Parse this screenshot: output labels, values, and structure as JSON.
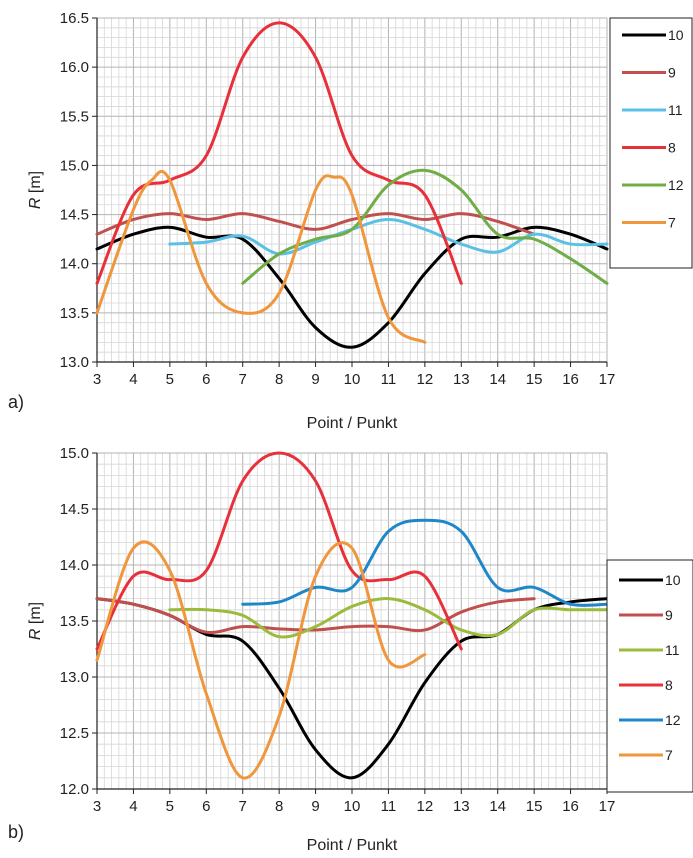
{
  "chart_data": [
    {
      "type": "line",
      "panel_label": "a)",
      "xlabel": "Point / Punkt",
      "ylabel_italic": "R",
      "ylabel_unit": " [m]",
      "xlim": [
        3,
        17
      ],
      "ylim": [
        13.0,
        16.5
      ],
      "xticks": [
        "3",
        "4",
        "5",
        "6",
        "7",
        "8",
        "9",
        "10",
        "11",
        "12",
        "13",
        "14",
        "15",
        "16",
        "17"
      ],
      "yticks": [
        "13.0",
        "13.5",
        "14.0",
        "14.5",
        "15.0",
        "15.5",
        "16.0",
        "16.5"
      ],
      "legend_position": "right",
      "series": [
        {
          "name": "10",
          "color": "#000000",
          "points": [
            [
              3,
              14.15
            ],
            [
              4,
              14.3
            ],
            [
              5,
              14.37
            ],
            [
              6,
              14.27
            ],
            [
              7,
              14.25
            ],
            [
              8,
              13.85
            ],
            [
              9,
              13.35
            ],
            [
              10,
              13.15
            ],
            [
              11,
              13.4
            ],
            [
              12,
              13.9
            ],
            [
              13,
              14.25
            ],
            [
              14,
              14.27
            ],
            [
              15,
              14.37
            ],
            [
              16,
              14.3
            ],
            [
              17,
              14.15
            ]
          ]
        },
        {
          "name": "9",
          "color": "#c0504d",
          "points": [
            [
              3,
              14.3
            ],
            [
              4,
              14.45
            ],
            [
              5,
              14.51
            ],
            [
              6,
              14.45
            ],
            [
              7,
              14.51
            ],
            [
              8,
              14.43
            ],
            [
              9,
              14.35
            ],
            [
              10,
              14.45
            ],
            [
              11,
              14.51
            ],
            [
              12,
              14.45
            ],
            [
              13,
              14.51
            ],
            [
              14,
              14.43
            ],
            [
              15,
              14.3
            ]
          ]
        },
        {
          "name": "11",
          "color": "#5bc0e6",
          "points": [
            [
              5,
              14.2
            ],
            [
              6,
              14.22
            ],
            [
              7,
              14.28
            ],
            [
              8,
              14.1
            ],
            [
              9,
              14.22
            ],
            [
              10,
              14.35
            ],
            [
              11,
              14.45
            ],
            [
              12,
              14.35
            ],
            [
              13,
              14.2
            ],
            [
              14,
              14.12
            ],
            [
              15,
              14.3
            ],
            [
              16,
              14.2
            ],
            [
              17,
              14.2
            ]
          ]
        },
        {
          "name": "8",
          "color": "#e8303a",
          "points": [
            [
              3,
              13.8
            ],
            [
              4,
              14.7
            ],
            [
              5,
              14.85
            ],
            [
              6,
              15.1
            ],
            [
              7,
              16.1
            ],
            [
              8,
              16.45
            ],
            [
              9,
              16.1
            ],
            [
              10,
              15.1
            ],
            [
              11,
              14.85
            ],
            [
              12,
              14.7
            ],
            [
              13,
              13.8
            ]
          ]
        },
        {
          "name": "12",
          "color": "#70ad47",
          "points": [
            [
              7,
              13.8
            ],
            [
              8,
              14.1
            ],
            [
              9,
              14.25
            ],
            [
              10,
              14.35
            ],
            [
              11,
              14.8
            ],
            [
              12,
              14.95
            ],
            [
              13,
              14.75
            ],
            [
              14,
              14.3
            ],
            [
              15,
              14.25
            ],
            [
              16,
              14.05
            ],
            [
              17,
              13.8
            ]
          ]
        },
        {
          "name": "7",
          "color": "#f0963c",
          "points": [
            [
              3,
              13.5
            ],
            [
              4,
              14.55
            ],
            [
              4.5,
              14.85
            ],
            [
              5,
              14.85
            ],
            [
              6,
              13.8
            ],
            [
              7,
              13.5
            ],
            [
              8,
              13.7
            ],
            [
              9,
              14.75
            ],
            [
              9.5,
              14.88
            ],
            [
              10,
              14.7
            ],
            [
              11,
              13.45
            ],
            [
              12,
              13.2
            ]
          ]
        }
      ]
    },
    {
      "type": "line",
      "panel_label": "b)",
      "xlabel": "Point / Punkt",
      "ylabel_italic": "R",
      "ylabel_unit": " [m]",
      "xlim": [
        3,
        17
      ],
      "ylim": [
        12.0,
        15.0
      ],
      "xticks": [
        "3",
        "4",
        "5",
        "6",
        "7",
        "8",
        "9",
        "10",
        "11",
        "12",
        "13",
        "14",
        "15",
        "16",
        "17"
      ],
      "yticks": [
        "12.0",
        "12.5",
        "13.0",
        "13.5",
        "14.0",
        "14.5",
        "15.0"
      ],
      "legend_position": "right",
      "series": [
        {
          "name": "10",
          "color": "#000000",
          "points": [
            [
              3,
              13.7
            ],
            [
              4,
              13.65
            ],
            [
              5,
              13.55
            ],
            [
              6,
              13.38
            ],
            [
              7,
              13.32
            ],
            [
              8,
              12.9
            ],
            [
              9,
              12.35
            ],
            [
              10,
              12.1
            ],
            [
              11,
              12.4
            ],
            [
              12,
              12.95
            ],
            [
              13,
              13.32
            ],
            [
              14,
              13.38
            ],
            [
              15,
              13.6
            ],
            [
              16,
              13.67
            ],
            [
              17,
              13.7
            ]
          ]
        },
        {
          "name": "9",
          "color": "#c0504d",
          "points": [
            [
              3,
              13.7
            ],
            [
              4,
              13.65
            ],
            [
              5,
              13.55
            ],
            [
              6,
              13.4
            ],
            [
              7,
              13.45
            ],
            [
              8,
              13.43
            ],
            [
              9,
              13.42
            ],
            [
              10,
              13.45
            ],
            [
              11,
              13.45
            ],
            [
              12,
              13.42
            ],
            [
              13,
              13.58
            ],
            [
              14,
              13.67
            ],
            [
              15,
              13.7
            ]
          ]
        },
        {
          "name": "11",
          "color": "#9bbb3c",
          "points": [
            [
              5,
              13.6
            ],
            [
              6,
              13.6
            ],
            [
              7,
              13.55
            ],
            [
              8,
              13.36
            ],
            [
              9,
              13.45
            ],
            [
              10,
              13.63
            ],
            [
              11,
              13.7
            ],
            [
              12,
              13.6
            ],
            [
              13,
              13.42
            ],
            [
              14,
              13.38
            ],
            [
              15,
              13.6
            ],
            [
              16,
              13.6
            ],
            [
              17,
              13.6
            ]
          ]
        },
        {
          "name": "8",
          "color": "#e8303a",
          "points": [
            [
              3,
              13.25
            ],
            [
              4,
              13.9
            ],
            [
              5,
              13.87
            ],
            [
              6,
              13.95
            ],
            [
              7,
              14.75
            ],
            [
              8,
              15.0
            ],
            [
              9,
              14.75
            ],
            [
              10,
              13.95
            ],
            [
              11,
              13.87
            ],
            [
              12,
              13.9
            ],
            [
              13,
              13.25
            ]
          ]
        },
        {
          "name": "12",
          "color": "#1f87c8",
          "points": [
            [
              7,
              13.65
            ],
            [
              8,
              13.67
            ],
            [
              9,
              13.8
            ],
            [
              10,
              13.8
            ],
            [
              11,
              14.3
            ],
            [
              12,
              14.4
            ],
            [
              13,
              14.3
            ],
            [
              14,
              13.8
            ],
            [
              15,
              13.8
            ],
            [
              16,
              13.65
            ],
            [
              17,
              13.65
            ]
          ]
        },
        {
          "name": "7",
          "color": "#f0963c",
          "points": [
            [
              3,
              13.15
            ],
            [
              4,
              14.15
            ],
            [
              5,
              13.95
            ],
            [
              6,
              12.85
            ],
            [
              7,
              12.1
            ],
            [
              8,
              12.65
            ],
            [
              9,
              13.9
            ],
            [
              10,
              14.15
            ],
            [
              11,
              13.15
            ],
            [
              12,
              13.2
            ]
          ]
        }
      ]
    }
  ]
}
